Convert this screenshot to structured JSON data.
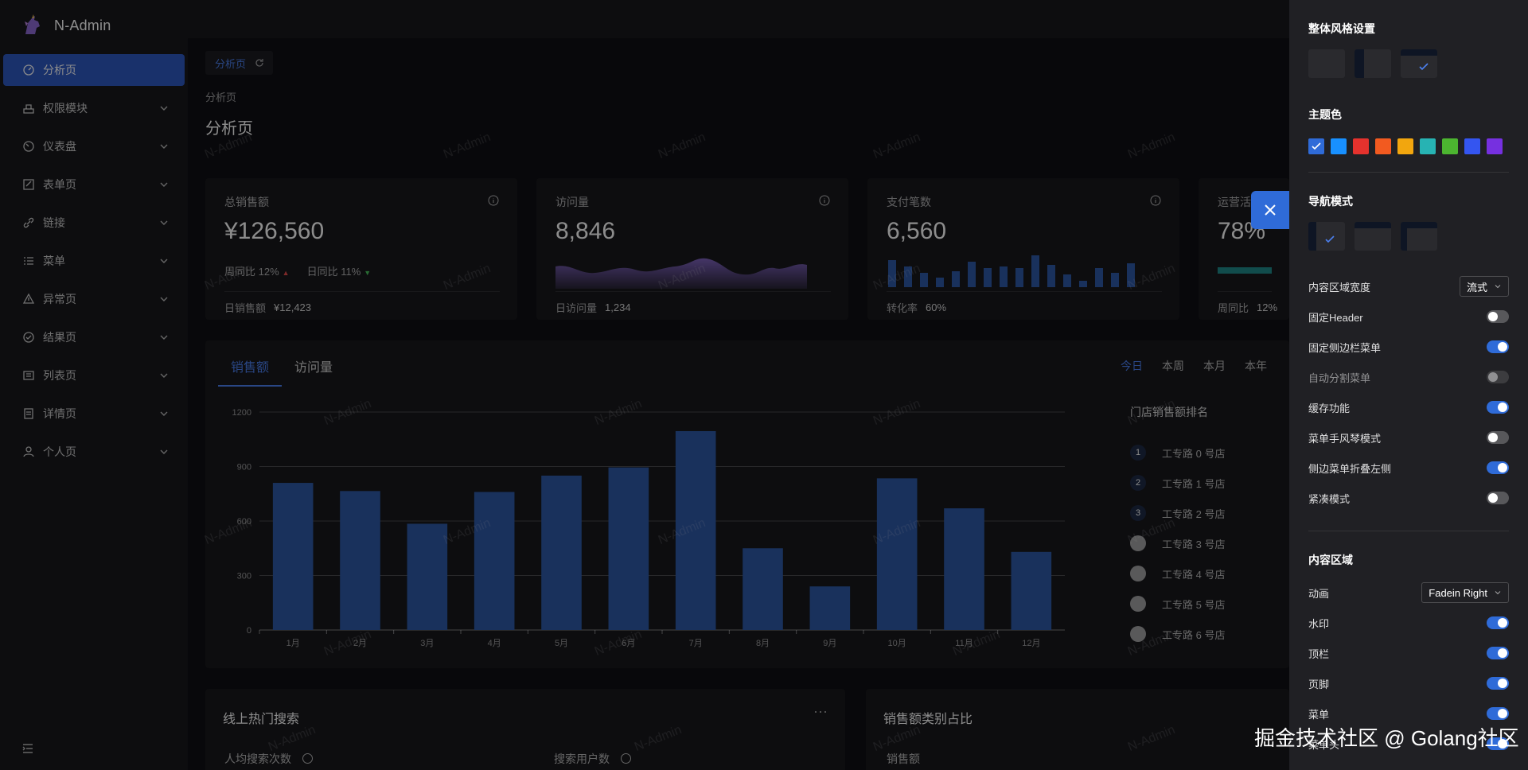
{
  "app": {
    "name": "N-Admin"
  },
  "sidebar": {
    "items": [
      {
        "label": "分析页",
        "icon": "dashboard-icon",
        "active": true,
        "arrow": false
      },
      {
        "label": "权限模块",
        "icon": "permission-icon",
        "arrow": true
      },
      {
        "label": "仪表盘",
        "icon": "gauge-icon",
        "arrow": true
      },
      {
        "label": "表单页",
        "icon": "form-icon",
        "arrow": true
      },
      {
        "label": "链接",
        "icon": "link-icon",
        "arrow": true
      },
      {
        "label": "菜单",
        "icon": "menu-list-icon",
        "arrow": true
      },
      {
        "label": "异常页",
        "icon": "warning-icon",
        "arrow": true
      },
      {
        "label": "结果页",
        "icon": "check-circle-icon",
        "arrow": true
      },
      {
        "label": "列表页",
        "icon": "list-icon",
        "arrow": true
      },
      {
        "label": "详情页",
        "icon": "detail-icon",
        "arrow": true
      },
      {
        "label": "个人页",
        "icon": "user-icon",
        "arrow": true
      }
    ]
  },
  "tabs": [
    {
      "label": "分析页"
    }
  ],
  "page": {
    "breadcrumb": "分析页",
    "title": "分析页"
  },
  "stats": {
    "sales": {
      "title": "总销售额",
      "value": "¥126,560",
      "wow_label": "周同比",
      "wow": "12%",
      "dod_label": "日同比",
      "dod": "11%",
      "foot_label": "日销售额",
      "foot_value": "¥12,423"
    },
    "visits": {
      "title": "访问量",
      "value": "8,846",
      "foot_label": "日访问量",
      "foot_value": "1,234"
    },
    "payments": {
      "title": "支付笔数",
      "value": "6,560",
      "foot_label": "转化率",
      "foot_value": "60%"
    },
    "ops": {
      "title": "运营活",
      "value": "78%",
      "foot_label": "周同比",
      "foot_value": "12%"
    }
  },
  "sales_panel": {
    "tabs": [
      "销售额",
      "访问量"
    ],
    "range": [
      "今日",
      "本周",
      "本月",
      "本年"
    ],
    "ranking_title": "门店销售额排名",
    "ranking": [
      {
        "rank": "1",
        "name": "工专路 0 号店"
      },
      {
        "rank": "2",
        "name": "工专路 1 号店"
      },
      {
        "rank": "3",
        "name": "工专路 2 号店"
      },
      {
        "rank": "",
        "name": "工专路 3 号店"
      },
      {
        "rank": "",
        "name": "工专路 4 号店"
      },
      {
        "rank": "",
        "name": "工专路 5 号店"
      },
      {
        "rank": "",
        "name": "工专路 6 号店"
      }
    ]
  },
  "chart_data": {
    "type": "bar",
    "categories": [
      "1月",
      "2月",
      "3月",
      "4月",
      "5月",
      "6月",
      "7月",
      "8月",
      "9月",
      "10月",
      "11月",
      "12月"
    ],
    "values": [
      810,
      765,
      585,
      760,
      850,
      895,
      1095,
      450,
      240,
      835,
      670,
      430
    ],
    "ylim": [
      0,
      1200
    ],
    "yticks": [
      0,
      300,
      600,
      900,
      1200
    ],
    "color": "#2f59a8",
    "grid": true
  },
  "bottom": {
    "hot_search": {
      "title": "线上热门搜索",
      "label1": "人均搜索次数",
      "label2": "搜索用户数",
      "more": "···"
    },
    "category": {
      "title": "销售额类别占比",
      "label": "销售额"
    }
  },
  "watermark": "N-Admin",
  "drawer": {
    "overall_style": "整体风格设置",
    "theme_color": "主题色",
    "theme_colors": [
      "#2f6bd8",
      "#1890ff",
      "#e5322d",
      "#f25a20",
      "#f2a60e",
      "#27b3b3",
      "#4cb530",
      "#3455f0",
      "#7630e0"
    ],
    "nav_mode": "导航模式",
    "content_width_label": "内容区域宽度",
    "content_width_value": "流式",
    "settings": [
      {
        "label": "固定Header",
        "on": false
      },
      {
        "label": "固定侧边栏菜单",
        "on": true
      },
      {
        "label": "自动分割菜单",
        "on": false,
        "disabled": true
      },
      {
        "label": "缓存功能",
        "on": true
      },
      {
        "label": "菜单手风琴模式",
        "on": false
      },
      {
        "label": "侧边菜单折叠左侧",
        "on": true
      },
      {
        "label": "紧凑模式",
        "on": false
      }
    ],
    "content_area": "内容区域",
    "animation_label": "动画",
    "animation_value": "Fadein Right",
    "content_settings": [
      {
        "label": "水印",
        "on": true
      },
      {
        "label": "顶栏",
        "on": true
      },
      {
        "label": "页脚",
        "on": true
      },
      {
        "label": "菜单",
        "on": true
      },
      {
        "label": "菜单头",
        "on": true
      }
    ]
  },
  "credit": "掘金技术社区 @ Golang社区"
}
